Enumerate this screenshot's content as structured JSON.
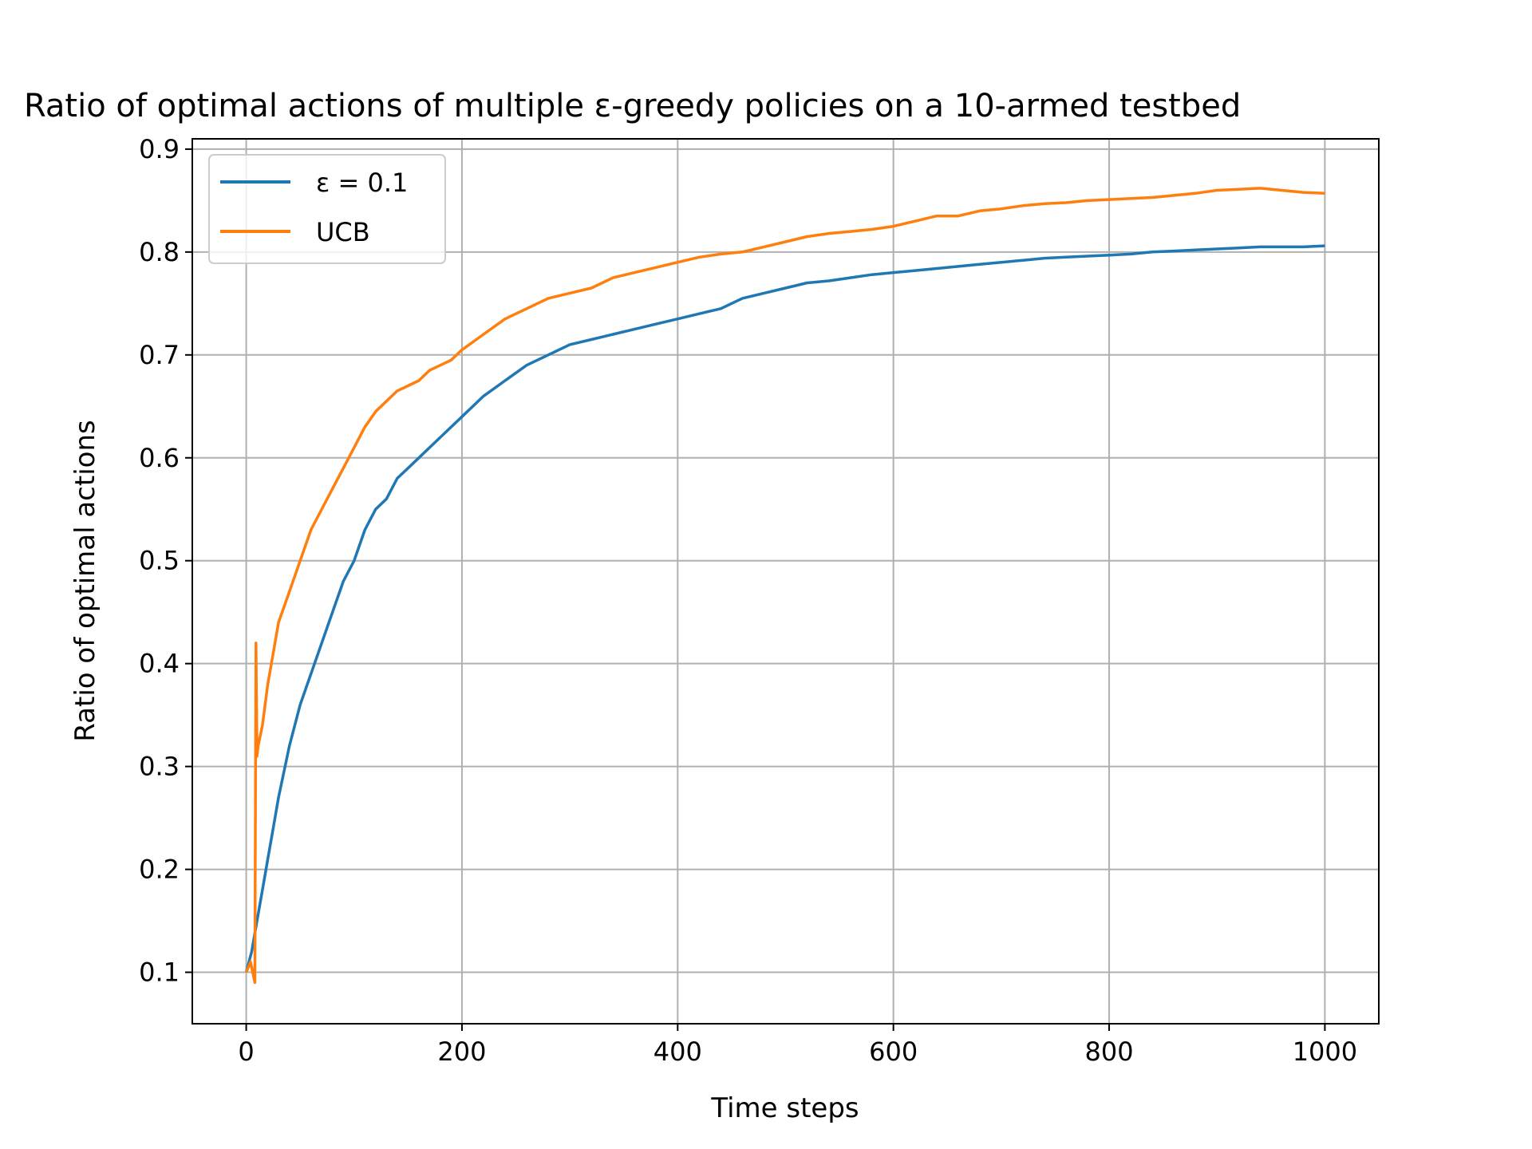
{
  "chart_data": {
    "type": "line",
    "title": "Ratio of optimal actions of multiple ε-greedy policies on a 10-armed testbed",
    "xlabel": "Time steps",
    "ylabel": "Ratio of optimal actions",
    "xlim": [
      -50,
      1050
    ],
    "ylim": [
      0.05,
      0.91
    ],
    "xticks": [
      0,
      200,
      400,
      600,
      800,
      1000
    ],
    "yticks": [
      0.1,
      0.2,
      0.3,
      0.4,
      0.5,
      0.6,
      0.7,
      0.8,
      0.9
    ],
    "xtick_labels": [
      "0",
      "200",
      "400",
      "600",
      "800",
      "1000"
    ],
    "ytick_labels": [
      "0.1",
      "0.2",
      "0.3",
      "0.4",
      "0.5",
      "0.6",
      "0.7",
      "0.8",
      "0.9"
    ],
    "grid": true,
    "legend_position": "upper-left",
    "series": [
      {
        "name": "ε = 0.1",
        "color": "#1f77b4",
        "x": [
          0,
          5,
          10,
          15,
          20,
          25,
          30,
          40,
          50,
          60,
          70,
          80,
          90,
          100,
          110,
          120,
          130,
          140,
          150,
          160,
          170,
          180,
          190,
          200,
          220,
          240,
          260,
          280,
          300,
          320,
          340,
          360,
          380,
          400,
          420,
          440,
          460,
          480,
          500,
          520,
          540,
          560,
          580,
          600,
          620,
          640,
          660,
          680,
          700,
          720,
          740,
          760,
          780,
          800,
          820,
          840,
          860,
          880,
          900,
          920,
          940,
          960,
          980,
          1000
        ],
        "y": [
          0.1,
          0.12,
          0.15,
          0.18,
          0.21,
          0.24,
          0.27,
          0.32,
          0.36,
          0.39,
          0.42,
          0.45,
          0.48,
          0.5,
          0.53,
          0.55,
          0.56,
          0.58,
          0.59,
          0.6,
          0.61,
          0.62,
          0.63,
          0.64,
          0.66,
          0.675,
          0.69,
          0.7,
          0.71,
          0.715,
          0.72,
          0.725,
          0.73,
          0.735,
          0.74,
          0.745,
          0.755,
          0.76,
          0.765,
          0.77,
          0.772,
          0.775,
          0.778,
          0.78,
          0.782,
          0.784,
          0.786,
          0.788,
          0.79,
          0.792,
          0.794,
          0.795,
          0.796,
          0.797,
          0.798,
          0.8,
          0.801,
          0.802,
          0.803,
          0.804,
          0.805,
          0.805,
          0.805,
          0.806
        ]
      },
      {
        "name": "UCB",
        "color": "#ff7f0e",
        "x": [
          0,
          4,
          8,
          9,
          10,
          11,
          13,
          15,
          20,
          25,
          30,
          40,
          50,
          60,
          70,
          80,
          90,
          100,
          110,
          120,
          130,
          140,
          150,
          160,
          170,
          180,
          190,
          200,
          220,
          240,
          260,
          280,
          300,
          320,
          340,
          360,
          380,
          400,
          420,
          440,
          460,
          480,
          500,
          520,
          540,
          560,
          580,
          600,
          620,
          640,
          660,
          680,
          700,
          720,
          740,
          760,
          780,
          800,
          820,
          840,
          860,
          880,
          900,
          920,
          940,
          960,
          980,
          1000
        ],
        "y": [
          0.1,
          0.11,
          0.09,
          0.42,
          0.31,
          0.32,
          0.33,
          0.34,
          0.38,
          0.41,
          0.44,
          0.47,
          0.5,
          0.53,
          0.55,
          0.57,
          0.59,
          0.61,
          0.63,
          0.645,
          0.655,
          0.665,
          0.67,
          0.675,
          0.685,
          0.69,
          0.695,
          0.705,
          0.72,
          0.735,
          0.745,
          0.755,
          0.76,
          0.765,
          0.775,
          0.78,
          0.785,
          0.79,
          0.795,
          0.798,
          0.8,
          0.805,
          0.81,
          0.815,
          0.818,
          0.82,
          0.822,
          0.825,
          0.83,
          0.835,
          0.835,
          0.84,
          0.842,
          0.845,
          0.847,
          0.848,
          0.85,
          0.851,
          0.852,
          0.853,
          0.855,
          0.857,
          0.86,
          0.861,
          0.862,
          0.86,
          0.858,
          0.857
        ]
      }
    ]
  }
}
